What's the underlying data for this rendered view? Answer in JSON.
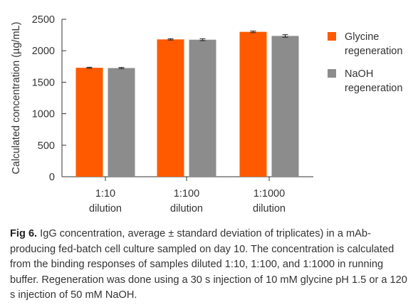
{
  "chart_data": {
    "type": "bar",
    "ylabel": "Calculated concentration (µg/mL)",
    "ylim": [
      0,
      2500
    ],
    "yticks": [
      0,
      500,
      1000,
      1500,
      2000,
      2500
    ],
    "grid": false,
    "legend_placement": "right",
    "categories": [
      [
        "1:10",
        "dilution"
      ],
      [
        "1:100",
        "dilution"
      ],
      [
        "1:1000",
        "dilution"
      ]
    ],
    "series": [
      {
        "name": [
          "Glycine",
          "regeneration"
        ],
        "color": "#ff5a00",
        "values": [
          1730,
          2180,
          2300
        ],
        "error": [
          8,
          10,
          12
        ]
      },
      {
        "name": [
          "NaOH",
          "regeneration"
        ],
        "color": "#8c8c8c",
        "values": [
          1725,
          2175,
          2235
        ],
        "error": [
          10,
          15,
          20
        ]
      }
    ]
  },
  "caption": {
    "label": "Fig 6.",
    "text": " IgG concentration, average ± standard deviation of triplicates) in a mAb-producing fed-batch cell culture sampled on day 10. The concentration is calculated from the binding responses of samples diluted 1:10, 1:100, and 1:1000 in running buffer. Regeneration was done using a 30 s injection of 10 mM glycine pH 1.5 or a 120 s injection of 50 mM NaOH."
  }
}
